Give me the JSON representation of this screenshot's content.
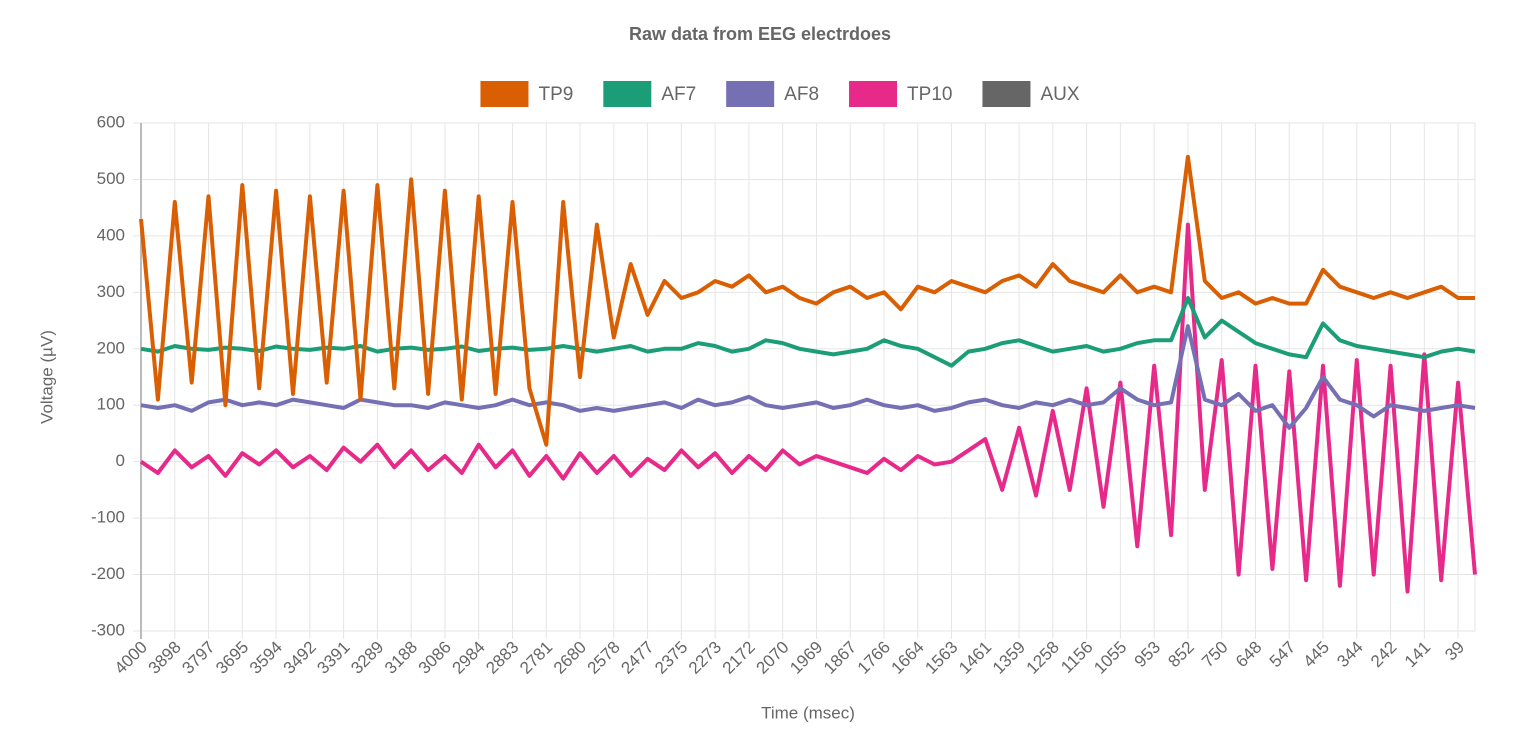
{
  "chart_data": {
    "type": "line",
    "title": "Raw data from EEG electrdoes",
    "xlabel": "Time (msec)",
    "ylabel": "Voltage (µV)",
    "categories": [
      "4000",
      null,
      "3898",
      null,
      "3797",
      null,
      "3695",
      null,
      "3594",
      null,
      "3492",
      null,
      "3391",
      null,
      "3289",
      null,
      "3188",
      null,
      "3086",
      null,
      "2984",
      null,
      "2883",
      null,
      "2781",
      null,
      "2680",
      null,
      "2578",
      null,
      "2477",
      null,
      "2375",
      null,
      "2273",
      null,
      "2172",
      null,
      "2070",
      null,
      "1969",
      null,
      "1867",
      null,
      "1766",
      null,
      "1664",
      null,
      "1563",
      null,
      "1461",
      null,
      "1359",
      null,
      "1258",
      null,
      "1156",
      null,
      "1055",
      null,
      "953",
      null,
      "852",
      null,
      "750",
      null,
      "648",
      null,
      "547",
      null,
      "445",
      null,
      "344",
      null,
      "242",
      null,
      "141",
      null,
      "39",
      null
    ],
    "series": [
      {
        "name": "TP9",
        "color": "#d95f02",
        "values": [
          430,
          110,
          460,
          140,
          470,
          100,
          490,
          130,
          480,
          120,
          470,
          140,
          480,
          110,
          490,
          130,
          500,
          120,
          480,
          110,
          470,
          120,
          460,
          130,
          30,
          460,
          150,
          420,
          220,
          350,
          260,
          320,
          290,
          300,
          320,
          310,
          330,
          300,
          310,
          290,
          280,
          300,
          310,
          290,
          300,
          270,
          310,
          300,
          320,
          310,
          300,
          320,
          330,
          310,
          350,
          320,
          310,
          300,
          330,
          300,
          310,
          300,
          540,
          320,
          290,
          300,
          280,
          290,
          280,
          280,
          340,
          310,
          300,
          290,
          300,
          290,
          300,
          310,
          290,
          290
        ]
      },
      {
        "name": "AF7",
        "color": "#1b9e77",
        "values": [
          200,
          195,
          205,
          200,
          198,
          202,
          200,
          196,
          204,
          200,
          198,
          202,
          200,
          205,
          195,
          200,
          202,
          198,
          200,
          204,
          196,
          200,
          202,
          198,
          200,
          205,
          200,
          195,
          200,
          205,
          195,
          200,
          200,
          210,
          205,
          195,
          200,
          215,
          210,
          200,
          195,
          190,
          195,
          200,
          215,
          205,
          200,
          185,
          170,
          195,
          200,
          210,
          215,
          205,
          195,
          200,
          205,
          195,
          200,
          210,
          215,
          215,
          290,
          220,
          250,
          230,
          210,
          200,
          190,
          185,
          245,
          215,
          205,
          200,
          195,
          190,
          185,
          195,
          200,
          195
        ]
      },
      {
        "name": "AF8",
        "color": "#7570b3",
        "values": [
          100,
          95,
          100,
          90,
          105,
          110,
          100,
          105,
          100,
          110,
          105,
          100,
          95,
          110,
          105,
          100,
          100,
          95,
          105,
          100,
          95,
          100,
          110,
          100,
          105,
          100,
          90,
          95,
          90,
          95,
          100,
          105,
          95,
          110,
          100,
          105,
          115,
          100,
          95,
          100,
          105,
          95,
          100,
          110,
          100,
          95,
          100,
          90,
          95,
          105,
          110,
          100,
          95,
          105,
          100,
          110,
          100,
          105,
          130,
          110,
          100,
          105,
          240,
          110,
          100,
          120,
          90,
          100,
          60,
          95,
          150,
          110,
          100,
          80,
          100,
          95,
          90,
          95,
          100,
          95
        ]
      },
      {
        "name": "TP10",
        "color": "#e7298a",
        "values": [
          0,
          -20,
          20,
          -10,
          10,
          -25,
          15,
          -5,
          20,
          -10,
          10,
          -15,
          25,
          0,
          30,
          -10,
          20,
          -15,
          10,
          -20,
          30,
          -10,
          20,
          -25,
          10,
          -30,
          15,
          -20,
          10,
          -25,
          5,
          -15,
          20,
          -10,
          15,
          -20,
          10,
          -15,
          20,
          -5,
          10,
          0,
          -10,
          -20,
          5,
          -15,
          10,
          -5,
          0,
          20,
          40,
          -50,
          60,
          -60,
          90,
          -50,
          130,
          -80,
          140,
          -150,
          170,
          -130,
          420,
          -50,
          180,
          -200,
          170,
          -190,
          160,
          -210,
          170,
          -220,
          180,
          -200,
          170,
          -230,
          190,
          -210,
          140,
          -200
        ]
      },
      {
        "name": "AUX",
        "color": "#666666",
        "values": [
          null,
          null,
          null,
          null,
          null,
          null,
          null,
          null,
          null,
          null,
          null,
          null,
          null,
          null,
          null,
          null,
          null,
          null,
          null,
          null,
          null,
          null,
          null,
          null,
          null,
          null,
          null,
          null,
          null,
          null,
          null,
          null,
          null,
          null,
          null,
          null,
          null,
          null,
          null,
          null,
          null,
          null,
          null,
          null,
          null,
          null,
          null,
          null,
          null,
          null,
          null,
          null,
          null,
          null,
          null,
          null,
          null,
          null,
          null,
          null,
          null,
          null,
          null,
          null,
          null,
          null,
          null,
          null,
          null,
          null,
          null,
          null,
          null,
          null,
          null,
          null,
          null,
          null,
          null,
          null
        ]
      }
    ],
    "ylim": [
      -300,
      600
    ],
    "yticks": [
      -300,
      -200,
      -100,
      0,
      100,
      200,
      300,
      400,
      500,
      600
    ],
    "grid": true,
    "legend": "top"
  }
}
